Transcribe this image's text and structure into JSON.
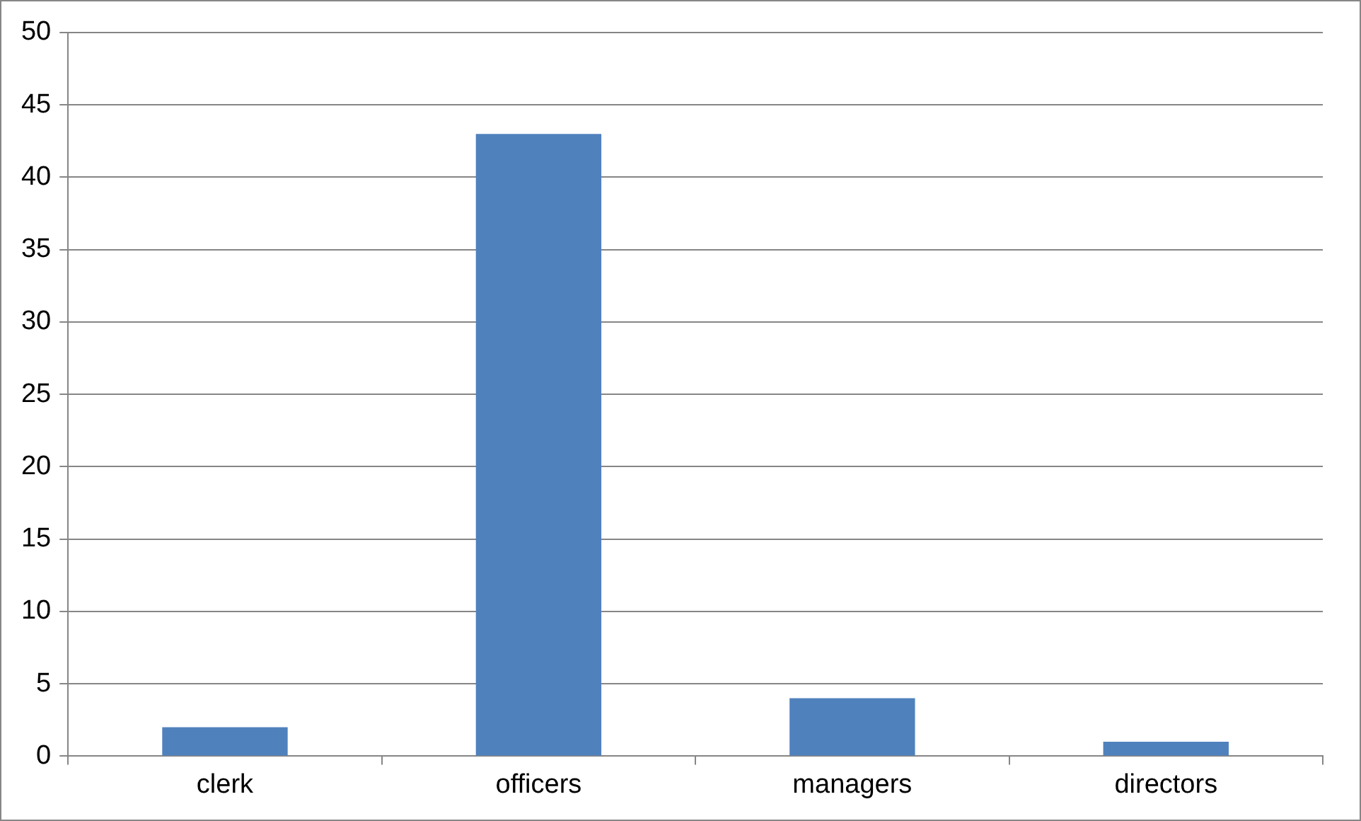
{
  "chart_data": {
    "type": "bar",
    "categories": [
      "clerk",
      "officers",
      "managers",
      "directors"
    ],
    "values": [
      2,
      43,
      4,
      1
    ],
    "color": "#4f81bd",
    "ylim": [
      0,
      50
    ],
    "yticks": [
      0,
      5,
      10,
      15,
      20,
      25,
      30,
      35,
      40,
      45,
      50
    ],
    "grid": "y",
    "legend": false
  }
}
